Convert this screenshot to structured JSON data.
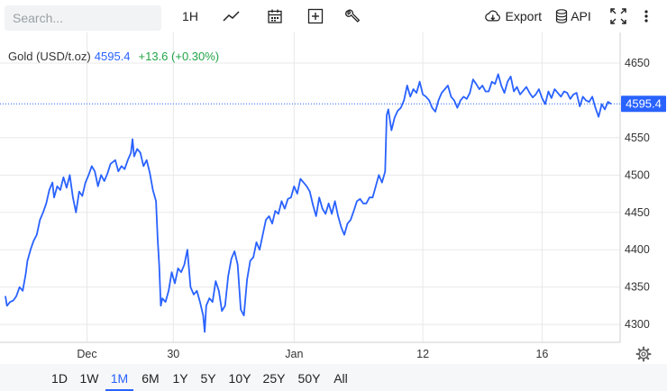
{
  "toolbar": {
    "search_placeholder": "Search...",
    "interval_label": "1H",
    "export_label": "Export",
    "api_label": "API"
  },
  "legend": {
    "symbol": "Gold (USD/t.oz)",
    "last": "4595.4",
    "change": "+13.6 (+0.30%)"
  },
  "price_label": "4595.4",
  "colors": {
    "line": "#2962ff",
    "up": "#22a447",
    "grid": "#e8e8e8"
  },
  "ranges": {
    "items": [
      "1D",
      "1W",
      "1M",
      "6M",
      "1Y",
      "5Y",
      "10Y",
      "25Y",
      "50Y",
      "All"
    ],
    "active": "1M"
  },
  "chart_data": {
    "type": "line",
    "series": [
      {
        "name": "Gold (USD/t.oz)",
        "points": [
          [
            0,
            4338
          ],
          [
            0.5,
            4325
          ],
          [
            1.5,
            4330
          ],
          [
            2.5,
            4332
          ],
          [
            3.5,
            4338
          ],
          [
            4.5,
            4350
          ],
          [
            5.5,
            4345
          ],
          [
            6.5,
            4368
          ],
          [
            7,
            4385
          ],
          [
            8,
            4400
          ],
          [
            9,
            4412
          ],
          [
            10,
            4420
          ],
          [
            11,
            4440
          ],
          [
            12,
            4450
          ],
          [
            13,
            4462
          ],
          [
            14,
            4480
          ],
          [
            15,
            4490
          ],
          [
            15.5,
            4470
          ],
          [
            16.5,
            4485
          ],
          [
            17.5,
            4480
          ],
          [
            18.5,
            4497
          ],
          [
            19.5,
            4483
          ],
          [
            20.5,
            4500
          ],
          [
            21.5,
            4470
          ],
          [
            22.5,
            4450
          ],
          [
            23.5,
            4478
          ],
          [
            24.5,
            4472
          ],
          [
            25.5,
            4490
          ],
          [
            26.5,
            4500
          ],
          [
            27.5,
            4512
          ],
          [
            28.5,
            4505
          ],
          [
            29.5,
            4485
          ],
          [
            30.5,
            4500
          ],
          [
            31.5,
            4492
          ],
          [
            32.5,
            4502
          ],
          [
            33.5,
            4515
          ],
          [
            35,
            4520
          ],
          [
            36,
            4505
          ],
          [
            37,
            4512
          ],
          [
            38,
            4508
          ],
          [
            39,
            4520
          ],
          [
            40,
            4530
          ],
          [
            40.5,
            4548
          ],
          [
            41,
            4525
          ],
          [
            42,
            4535
          ],
          [
            43,
            4530
          ],
          [
            44,
            4512
          ],
          [
            45,
            4520
          ],
          [
            46,
            4503
          ],
          [
            47,
            4480
          ],
          [
            48,
            4465
          ],
          [
            48.5,
            4415
          ],
          [
            49,
            4380
          ],
          [
            49.5,
            4325
          ],
          [
            50,
            4335
          ],
          [
            51,
            4330
          ],
          [
            52,
            4345
          ],
          [
            53,
            4370
          ],
          [
            54,
            4355
          ],
          [
            55,
            4375
          ],
          [
            56,
            4370
          ],
          [
            57,
            4380
          ],
          [
            58,
            4400
          ],
          [
            59,
            4350
          ],
          [
            60,
            4340
          ],
          [
            61,
            4345
          ],
          [
            62,
            4330
          ],
          [
            63,
            4312
          ],
          [
            63.5,
            4290
          ],
          [
            64,
            4325
          ],
          [
            65,
            4335
          ],
          [
            66,
            4330
          ],
          [
            67,
            4358
          ],
          [
            68,
            4345
          ],
          [
            69,
            4318
          ],
          [
            70,
            4325
          ],
          [
            71,
            4365
          ],
          [
            72,
            4388
          ],
          [
            73,
            4398
          ],
          [
            74,
            4380
          ],
          [
            75,
            4320
          ],
          [
            76,
            4312
          ],
          [
            77,
            4360
          ],
          [
            78,
            4385
          ],
          [
            79,
            4390
          ],
          [
            80,
            4410
          ],
          [
            81,
            4400
          ],
          [
            82,
            4420
          ],
          [
            83,
            4440
          ],
          [
            84,
            4445
          ],
          [
            85,
            4435
          ],
          [
            86,
            4452
          ],
          [
            87,
            4448
          ],
          [
            88,
            4465
          ],
          [
            89,
            4455
          ],
          [
            90,
            4468
          ],
          [
            91,
            4470
          ],
          [
            92,
            4485
          ],
          [
            93,
            4475
          ],
          [
            94,
            4495
          ],
          [
            95,
            4490
          ],
          [
            96,
            4485
          ],
          [
            97,
            4478
          ],
          [
            98,
            4460
          ],
          [
            99,
            4445
          ],
          [
            100,
            4470
          ],
          [
            101,
            4455
          ],
          [
            102,
            4448
          ],
          [
            103,
            4462
          ],
          [
            104,
            4448
          ],
          [
            105,
            4465
          ],
          [
            106,
            4445
          ],
          [
            107,
            4430
          ],
          [
            108,
            4420
          ],
          [
            109,
            4435
          ],
          [
            110,
            4440
          ],
          [
            111,
            4452
          ],
          [
            112,
            4465
          ],
          [
            113,
            4468
          ],
          [
            114,
            4462
          ],
          [
            115,
            4462
          ],
          [
            116,
            4470
          ],
          [
            117,
            4470
          ],
          [
            118,
            4485
          ],
          [
            119,
            4500
          ],
          [
            120,
            4490
          ],
          [
            121,
            4505
          ],
          [
            121.5,
            4580
          ],
          [
            122,
            4588
          ],
          [
            123,
            4560
          ],
          [
            124,
            4577
          ],
          [
            125,
            4586
          ],
          [
            126,
            4590
          ],
          [
            127,
            4600
          ],
          [
            128,
            4620
          ],
          [
            129,
            4605
          ],
          [
            130,
            4615
          ],
          [
            131,
            4610
          ],
          [
            132,
            4625
          ],
          [
            133,
            4608
          ],
          [
            134,
            4605
          ],
          [
            135,
            4600
          ],
          [
            136,
            4590
          ],
          [
            137,
            4585
          ],
          [
            138,
            4600
          ],
          [
            139,
            4610
          ],
          [
            140,
            4615
          ],
          [
            141,
            4620
          ],
          [
            142,
            4605
          ],
          [
            143,
            4600
          ],
          [
            144,
            4590
          ],
          [
            145,
            4600
          ],
          [
            146,
            4605
          ],
          [
            147,
            4602
          ],
          [
            148,
            4610
          ],
          [
            149,
            4628
          ],
          [
            150,
            4622
          ],
          [
            151,
            4615
          ],
          [
            152,
            4620
          ],
          [
            153,
            4612
          ],
          [
            154,
            4612
          ],
          [
            155,
            4625
          ],
          [
            156,
            4622
          ],
          [
            157,
            4635
          ],
          [
            158,
            4620
          ],
          [
            159,
            4610
          ],
          [
            160,
            4625
          ],
          [
            161,
            4632
          ],
          [
            162,
            4612
          ],
          [
            163,
            4618
          ],
          [
            164,
            4608
          ],
          [
            165,
            4613
          ],
          [
            166,
            4618
          ],
          [
            167,
            4610
          ],
          [
            168,
            4604
          ],
          [
            169,
            4608
          ],
          [
            170,
            4615
          ],
          [
            171,
            4603
          ],
          [
            172,
            4595
          ],
          [
            173,
            4612
          ],
          [
            174,
            4603
          ],
          [
            175,
            4615
          ],
          [
            176,
            4610
          ],
          [
            177,
            4605
          ],
          [
            178,
            4612
          ],
          [
            179,
            4610
          ],
          [
            180,
            4602
          ],
          [
            181,
            4608
          ],
          [
            182,
            4610
          ],
          [
            183,
            4592
          ],
          [
            184,
            4605
          ],
          [
            185,
            4600
          ],
          [
            186,
            4598
          ],
          [
            187,
            4605
          ],
          [
            188,
            4590
          ],
          [
            189,
            4578
          ],
          [
            190,
            4595
          ],
          [
            191,
            4588
          ],
          [
            192,
            4598
          ],
          [
            193,
            4595.4
          ]
        ]
      }
    ],
    "x_ticks": [
      {
        "label": "Dec",
        "x": 26
      },
      {
        "label": "30",
        "x": 53.5
      },
      {
        "label": "Jan",
        "x": 92
      },
      {
        "label": "12",
        "x": 133
      },
      {
        "label": "16",
        "x": 171
      }
    ],
    "xlim": [
      0,
      193
    ],
    "y_ticks": [
      4300,
      4350,
      4400,
      4450,
      4500,
      4550,
      4650
    ],
    "ylim": [
      4276,
      4691
    ],
    "last_value": 4595.4,
    "grid": true,
    "y_axis_side": "right"
  }
}
